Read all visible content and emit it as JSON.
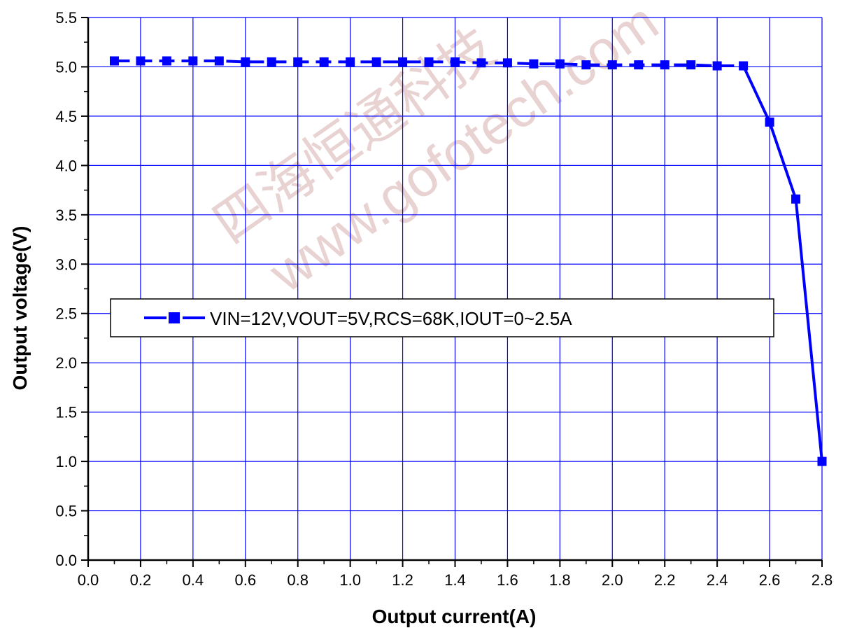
{
  "chart_data": {
    "type": "line",
    "xlabel": "Output current(A)",
    "ylabel": "Output voltage(V)",
    "xlim": [
      0,
      2.8
    ],
    "ylim": [
      0,
      5.5
    ],
    "x_ticks": [
      "0.0",
      "0.2",
      "0.4",
      "0.6",
      "0.8",
      "1.0",
      "1.2",
      "1.4",
      "1.6",
      "1.8",
      "2.0",
      "2.2",
      "2.4",
      "2.6",
      "2.8"
    ],
    "y_ticks": [
      "0.0",
      "0.5",
      "1.0",
      "1.5",
      "2.0",
      "2.5",
      "3.0",
      "3.5",
      "4.0",
      "4.5",
      "5.0",
      "5.5"
    ],
    "grid": true,
    "legend_position": "center-left",
    "series": [
      {
        "name": "VIN=12V,VOUT=5V,RCS=68K,IOUT=0~2.5A",
        "color": "#0000ff",
        "marker": "square",
        "x": [
          0.1,
          0.2,
          0.3,
          0.4,
          0.5,
          0.6,
          0.7,
          0.8,
          0.9,
          1.0,
          1.1,
          1.2,
          1.3,
          1.4,
          1.5,
          1.6,
          1.7,
          1.8,
          1.9,
          2.0,
          2.1,
          2.2,
          2.3,
          2.4,
          2.5,
          2.6,
          2.7,
          2.8
        ],
        "y": [
          5.06,
          5.06,
          5.06,
          5.06,
          5.06,
          5.05,
          5.05,
          5.05,
          5.05,
          5.05,
          5.05,
          5.05,
          5.05,
          5.05,
          5.04,
          5.04,
          5.03,
          5.03,
          5.02,
          5.02,
          5.02,
          5.02,
          5.02,
          5.01,
          5.01,
          4.44,
          3.66,
          1.0
        ]
      }
    ]
  },
  "watermark": {
    "line1": "四海恒通科技",
    "line2": "www.gofotech.com"
  }
}
